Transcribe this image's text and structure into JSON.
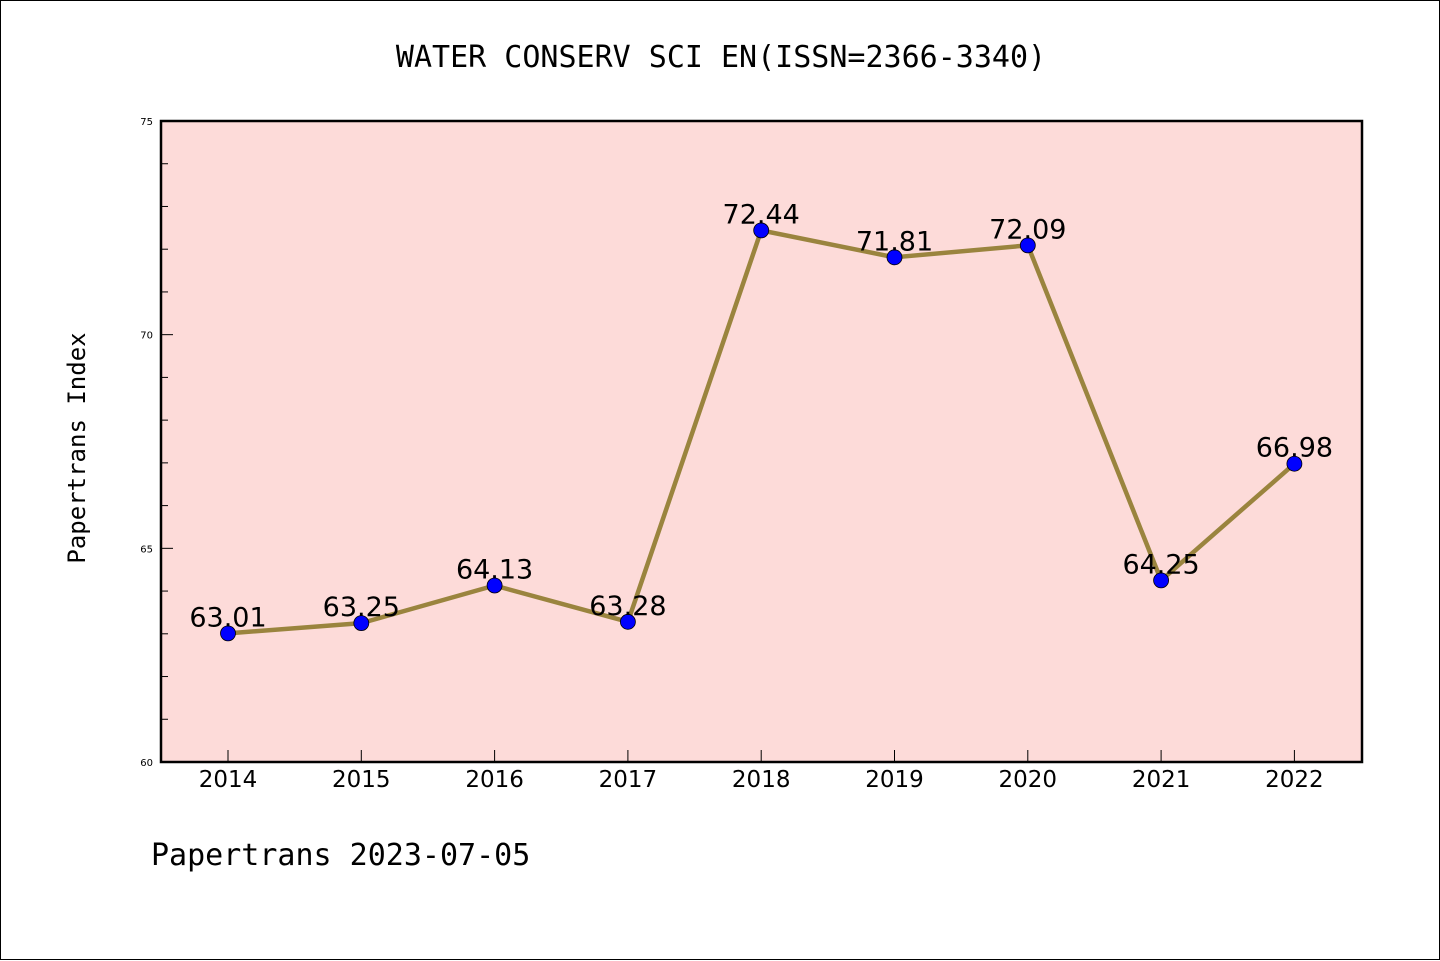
{
  "chart_data": {
    "type": "line",
    "title": "WATER CONSERV SCI EN(ISSN=2366-3340)",
    "ylabel": "Papertrans Index",
    "xlabel": "",
    "categories": [
      "2014",
      "2015",
      "2016",
      "2017",
      "2018",
      "2019",
      "2020",
      "2021",
      "2022"
    ],
    "values": [
      63.01,
      63.25,
      64.13,
      63.28,
      72.44,
      71.81,
      72.09,
      64.25,
      66.98
    ],
    "data_labels": [
      "63.01",
      "63.25",
      "64.13",
      "63.28",
      "72.44",
      "71.81",
      "72.09",
      "64.25",
      "66.98"
    ],
    "ylim": [
      60,
      75
    ],
    "yticks": [
      60,
      65,
      70,
      75
    ],
    "ytick_labels": [
      "60",
      "65",
      "70",
      "75"
    ],
    "grid": false,
    "colors": {
      "plot_background": "#fddbd9",
      "line": "#9a843e",
      "marker": "#0000ff"
    }
  },
  "footer": {
    "text": "Papertrans 2023-07-05"
  }
}
